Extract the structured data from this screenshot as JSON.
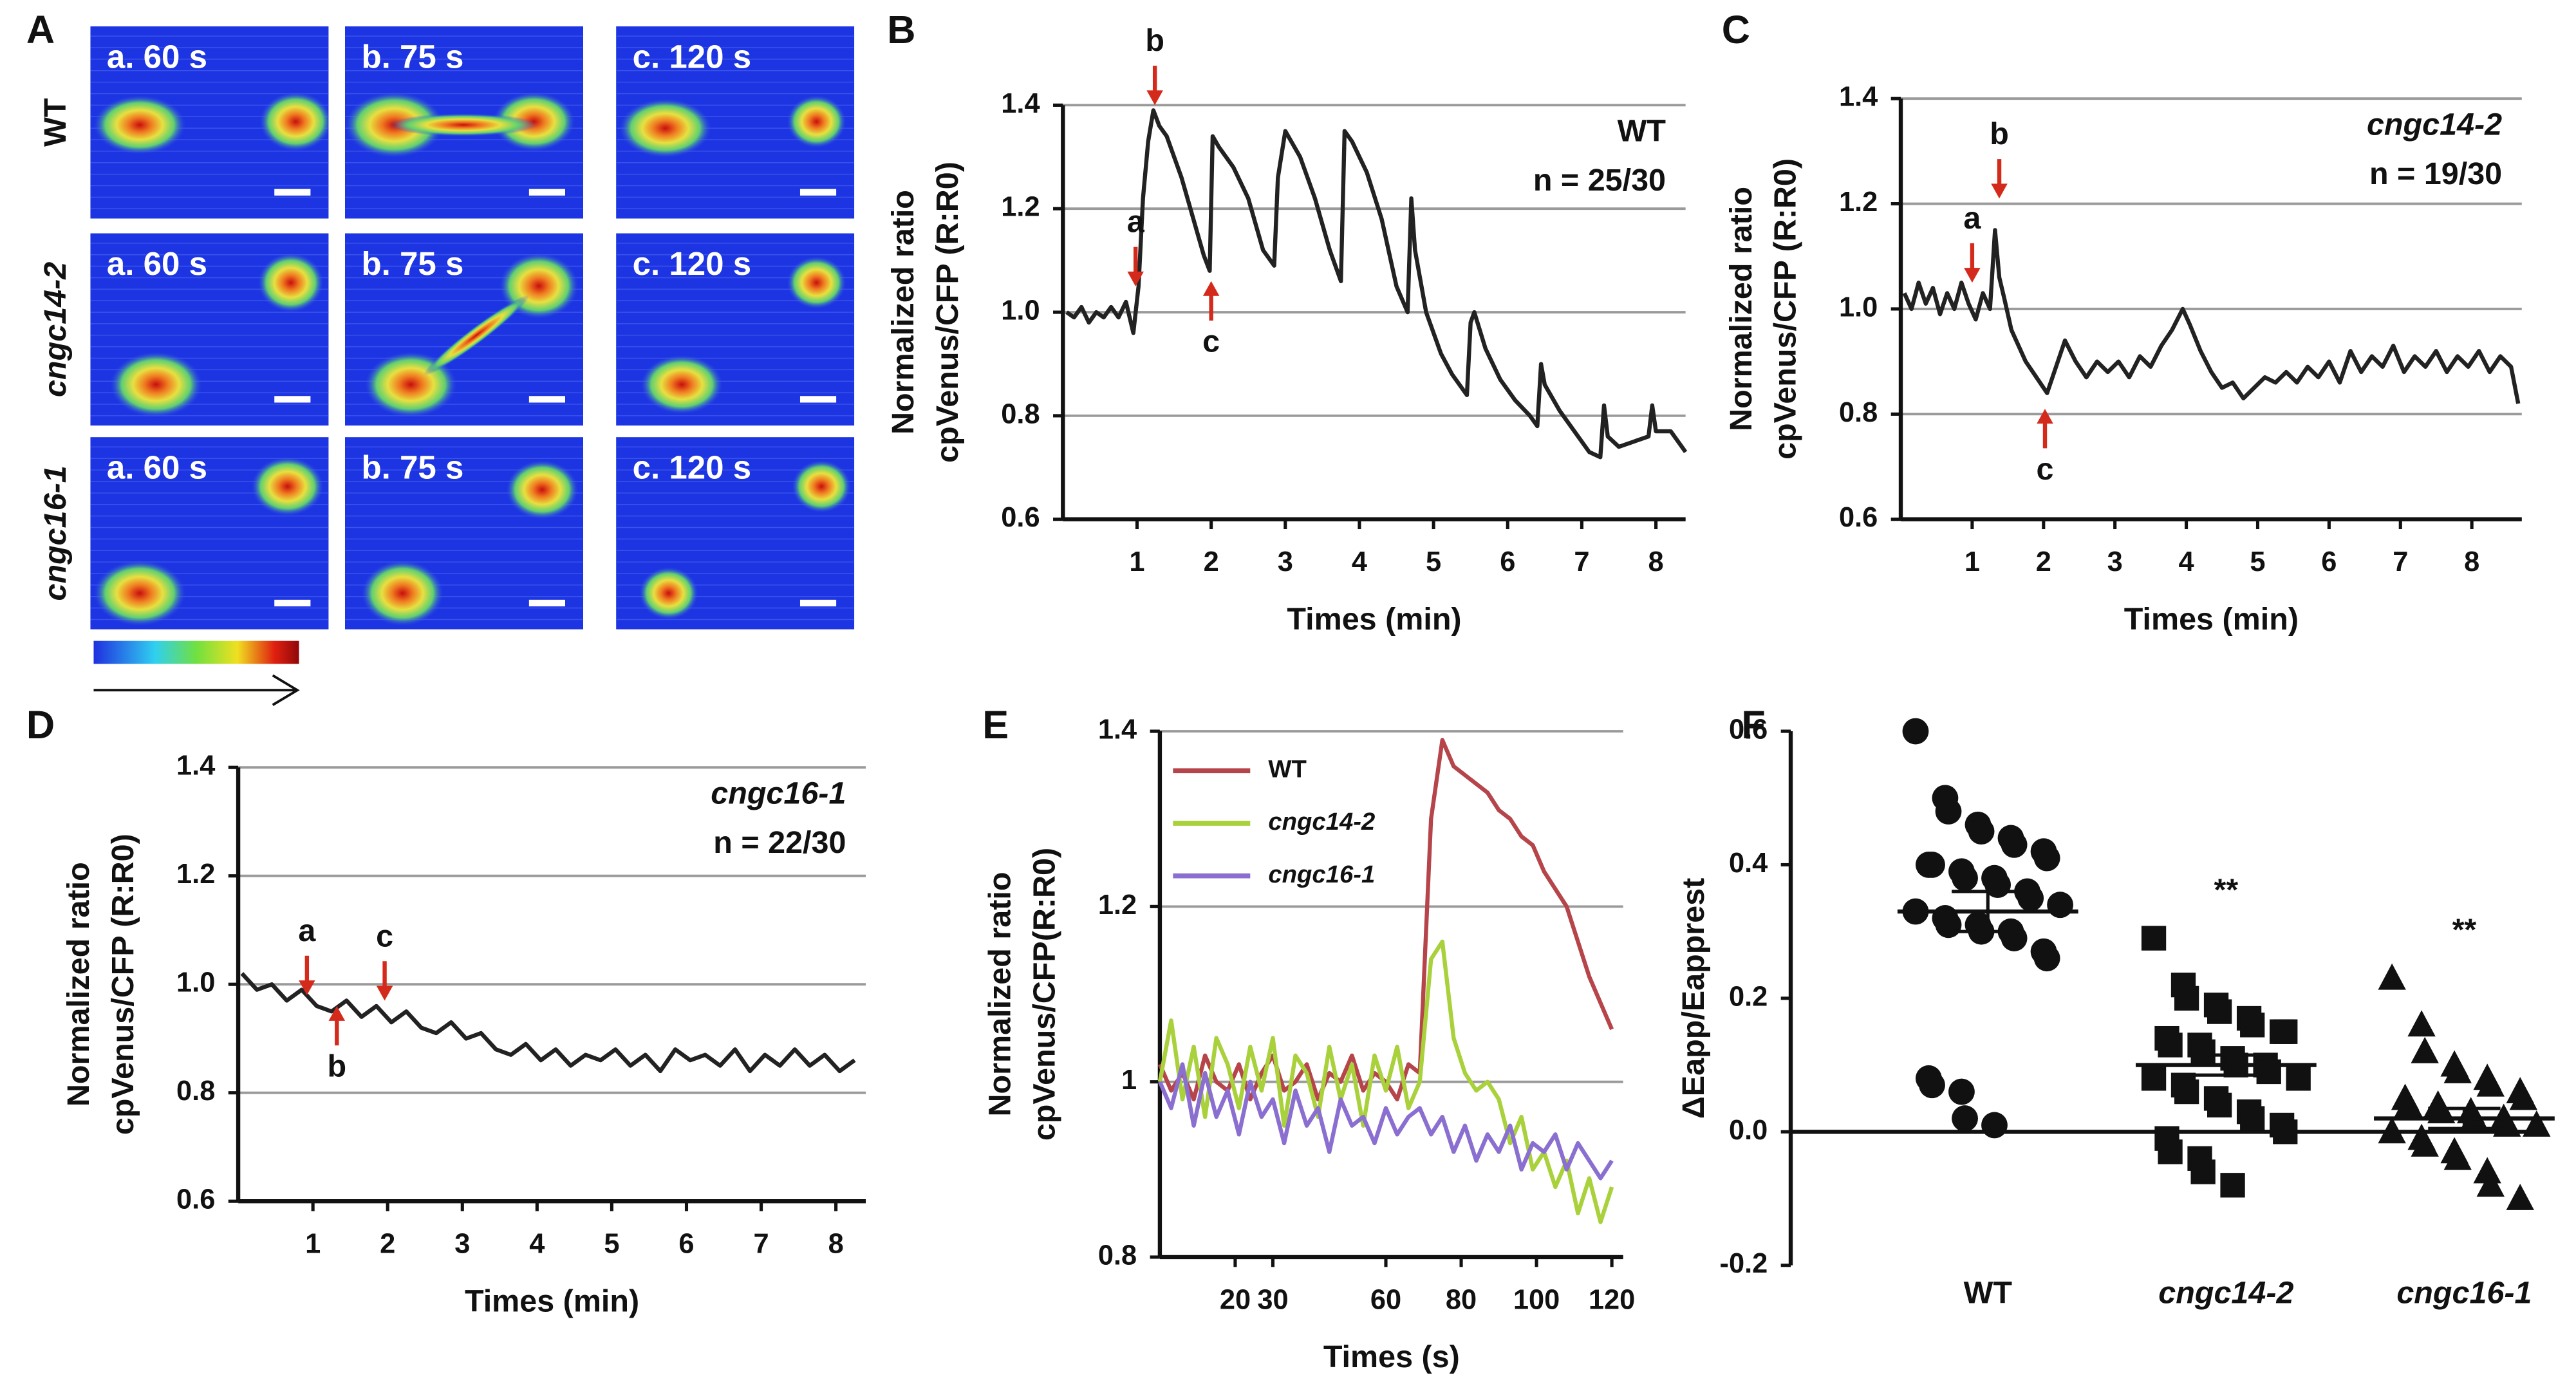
{
  "chart_data": [
    {
      "type": "image-grid",
      "panel": "A",
      "rows": [
        "WT",
        "cngc14-2",
        "cngc16-1"
      ],
      "columns": [
        "a. 60 s",
        "b. 75 s",
        "c. 120 s"
      ]
    },
    {
      "type": "line",
      "panel": "B",
      "genotype": "WT",
      "n_label": "n = 25/30",
      "ylabel": [
        "Normalized ratio",
        "cpVenus/CFP (R:R0)"
      ],
      "xlabel": "Times (min)",
      "color": "#222",
      "grid": true,
      "xlim": [
        0,
        8.4
      ],
      "xticks": [
        1,
        2,
        3,
        4,
        5,
        6,
        7,
        8
      ],
      "ylim": [
        0.6,
        1.4
      ],
      "yticks": [
        1.4,
        1.2,
        {
          "value": 1,
          "label": "1.0"
        },
        0.8,
        0.6
      ],
      "x": [
        0.05,
        0.15,
        0.25,
        0.35,
        0.45,
        0.55,
        0.65,
        0.75,
        0.85,
        0.95,
        1.02,
        1.08,
        1.15,
        1.22,
        1.3,
        1.4,
        1.5,
        1.6,
        1.7,
        1.8,
        1.9,
        1.98,
        2.02,
        2.1,
        2.3,
        2.5,
        2.7,
        2.85,
        2.9,
        3.0,
        3.2,
        3.4,
        3.6,
        3.75,
        3.8,
        3.9,
        4.1,
        4.3,
        4.5,
        4.65,
        4.7,
        4.75,
        4.9,
        5.1,
        5.25,
        5.45,
        5.5,
        5.55,
        5.7,
        5.9,
        6.1,
        6.3,
        6.4,
        6.45,
        6.5,
        6.7,
        6.9,
        7.1,
        7.25,
        7.3,
        7.35,
        7.5,
        7.7,
        7.9,
        7.95,
        8.0,
        8.2,
        8.4
      ],
      "values": [
        1.0,
        0.99,
        1.01,
        0.98,
        1.0,
        0.99,
        1.01,
        0.99,
        1.02,
        0.96,
        1.05,
        1.22,
        1.33,
        1.39,
        1.36,
        1.34,
        1.3,
        1.26,
        1.21,
        1.16,
        1.11,
        1.08,
        1.34,
        1.32,
        1.28,
        1.22,
        1.12,
        1.09,
        1.26,
        1.35,
        1.3,
        1.22,
        1.12,
        1.06,
        1.35,
        1.33,
        1.27,
        1.18,
        1.05,
        1.0,
        1.22,
        1.12,
        1.0,
        0.92,
        0.88,
        0.84,
        0.98,
        1.0,
        0.93,
        0.87,
        0.83,
        0.8,
        0.78,
        0.9,
        0.86,
        0.81,
        0.77,
        0.73,
        0.72,
        0.82,
        0.76,
        0.74,
        0.75,
        0.76,
        0.82,
        0.77,
        0.77,
        0.73
      ],
      "annotations": [
        {
          "text": "a",
          "x": 0.98,
          "y": 1.05,
          "side": "above"
        },
        {
          "text": "b",
          "x": 1.24,
          "y": 1.4,
          "side": "above"
        },
        {
          "text": "c",
          "x": 2.0,
          "y": 1.06,
          "side": "below"
        }
      ]
    },
    {
      "type": "line",
      "panel": "C",
      "genotype": "cngc14-2",
      "n_label": "n = 19/30",
      "ylabel": [
        "Normalized ratio",
        "cpVenus/CFP (R:R0)"
      ],
      "xlabel": "Times (min)",
      "color": "#222",
      "grid": true,
      "xlim": [
        0,
        8.7
      ],
      "xticks": [
        1,
        2,
        3,
        4,
        5,
        6,
        7,
        8
      ],
      "ylim": [
        0.6,
        1.4
      ],
      "yticks": [
        1.4,
        1.2,
        {
          "value": 1,
          "label": "1.0"
        },
        0.8,
        0.6
      ],
      "x": [
        0.05,
        0.15,
        0.25,
        0.35,
        0.45,
        0.55,
        0.65,
        0.75,
        0.85,
        0.95,
        1.05,
        1.15,
        1.25,
        1.32,
        1.38,
        1.45,
        1.55,
        1.65,
        1.75,
        1.85,
        1.95,
        2.05,
        2.15,
        2.3,
        2.45,
        2.6,
        2.75,
        2.9,
        3.05,
        3.2,
        3.35,
        3.5,
        3.65,
        3.8,
        3.95,
        4.05,
        4.2,
        4.35,
        4.5,
        4.65,
        4.8,
        4.95,
        5.1,
        5.25,
        5.4,
        5.55,
        5.7,
        5.85,
        6.0,
        6.15,
        6.3,
        6.45,
        6.6,
        6.75,
        6.9,
        7.05,
        7.2,
        7.35,
        7.5,
        7.65,
        7.8,
        7.95,
        8.1,
        8.25,
        8.4,
        8.55,
        8.65
      ],
      "values": [
        1.03,
        1.0,
        1.05,
        1.01,
        1.04,
        0.99,
        1.03,
        1.0,
        1.05,
        1.01,
        0.98,
        1.03,
        1.0,
        1.15,
        1.06,
        1.02,
        0.96,
        0.93,
        0.9,
        0.88,
        0.86,
        0.84,
        0.88,
        0.94,
        0.9,
        0.87,
        0.9,
        0.88,
        0.9,
        0.87,
        0.91,
        0.89,
        0.93,
        0.96,
        1.0,
        0.97,
        0.92,
        0.88,
        0.85,
        0.86,
        0.83,
        0.85,
        0.87,
        0.86,
        0.88,
        0.86,
        0.89,
        0.87,
        0.9,
        0.86,
        0.92,
        0.88,
        0.91,
        0.89,
        0.93,
        0.88,
        0.91,
        0.89,
        0.92,
        0.88,
        0.91,
        0.89,
        0.92,
        0.88,
        0.91,
        0.89,
        0.82
      ],
      "annotations": [
        {
          "text": "a",
          "x": 1.0,
          "y": 1.05,
          "side": "above"
        },
        {
          "text": "b",
          "x": 1.38,
          "y": 1.21,
          "side": "above"
        },
        {
          "text": "c",
          "x": 2.02,
          "y": 0.81,
          "side": "below"
        }
      ]
    },
    {
      "type": "line",
      "panel": "D",
      "genotype": "cngc16-1",
      "n_label": "n = 22/30",
      "ylabel": [
        "Normalized ratio",
        "cpVenus/CFP (R:R0)"
      ],
      "xlabel": "Times (min)",
      "color": "#222",
      "grid": true,
      "xlim": [
        0,
        8.4
      ],
      "xticks": [
        1,
        2,
        3,
        4,
        5,
        6,
        7,
        8
      ],
      "ylim": [
        0.6,
        1.4
      ],
      "yticks": [
        1.4,
        1.2,
        {
          "value": 1,
          "label": "1.0"
        },
        0.8,
        0.6
      ],
      "x": [
        0.05,
        0.25,
        0.45,
        0.65,
        0.85,
        1.05,
        1.25,
        1.45,
        1.65,
        1.85,
        2.05,
        2.25,
        2.45,
        2.65,
        2.85,
        3.05,
        3.25,
        3.45,
        3.65,
        3.85,
        4.05,
        4.25,
        4.45,
        4.65,
        4.85,
        5.05,
        5.25,
        5.45,
        5.65,
        5.85,
        6.05,
        6.25,
        6.45,
        6.65,
        6.85,
        7.05,
        7.25,
        7.45,
        7.65,
        7.85,
        8.05,
        8.25
      ],
      "values": [
        1.02,
        0.99,
        1.0,
        0.97,
        0.99,
        0.96,
        0.95,
        0.97,
        0.94,
        0.96,
        0.93,
        0.95,
        0.92,
        0.91,
        0.93,
        0.9,
        0.91,
        0.88,
        0.87,
        0.89,
        0.86,
        0.88,
        0.85,
        0.87,
        0.86,
        0.88,
        0.85,
        0.87,
        0.84,
        0.88,
        0.86,
        0.87,
        0.85,
        0.88,
        0.84,
        0.87,
        0.85,
        0.88,
        0.85,
        0.87,
        0.84,
        0.86
      ],
      "annotations": [
        {
          "text": "a",
          "x": 0.92,
          "y": 0.98,
          "side": "above"
        },
        {
          "text": "b",
          "x": 1.32,
          "y": 0.96,
          "side": "below"
        },
        {
          "text": "c",
          "x": 1.96,
          "y": 0.97,
          "side": "above"
        }
      ]
    },
    {
      "type": "line",
      "panel": "E",
      "legend": true,
      "ylabel": [
        "Normalized ratio",
        "cpVenus/CFP(R:R0)"
      ],
      "xlabel": "Times (s)",
      "grid": true,
      "xlim": [
        0,
        123
      ],
      "xticks": [
        20,
        30,
        60,
        80,
        100,
        120
      ],
      "ylim": [
        0.8,
        1.4
      ],
      "yticks": [
        1.4,
        1.2,
        1,
        0.8
      ],
      "x": [
        0,
        3,
        6,
        9,
        12,
        15,
        18,
        21,
        24,
        27,
        30,
        33,
        36,
        39,
        42,
        45,
        48,
        51,
        54,
        57,
        60,
        63,
        66,
        69,
        72,
        75,
        78,
        81,
        84,
        87,
        90,
        93,
        96,
        99,
        102,
        105,
        108,
        111,
        114,
        117,
        120
      ],
      "series": [
        {
          "name": "WT",
          "color": "#b5454a",
          "values": [
            1.02,
            0.99,
            1.01,
            0.98,
            1.03,
            1.0,
            0.99,
            1.02,
            0.98,
            1.01,
            1.03,
            0.99,
            1.0,
            1.02,
            0.98,
            1.01,
            1.0,
            1.03,
            0.99,
            1.01,
            1.0,
            0.98,
            1.02,
            1.01,
            1.3,
            1.39,
            1.36,
            1.35,
            1.34,
            1.33,
            1.31,
            1.3,
            1.28,
            1.27,
            1.24,
            1.22,
            1.2,
            1.16,
            1.12,
            1.09,
            1.06
          ]
        },
        {
          "name": "cngc14-2",
          "color": "#a9d13b",
          "values": [
            1.0,
            1.07,
            0.98,
            1.04,
            0.96,
            1.05,
            1.02,
            0.97,
            1.04,
            0.99,
            1.05,
            0.95,
            1.03,
            1.01,
            0.96,
            1.04,
            0.98,
            1.02,
            0.95,
            1.03,
            0.99,
            1.04,
            0.97,
            1.0,
            1.14,
            1.16,
            1.05,
            1.01,
            0.99,
            1.0,
            0.98,
            0.93,
            0.96,
            0.9,
            0.92,
            0.88,
            0.91,
            0.85,
            0.89,
            0.84,
            0.88
          ]
        },
        {
          "name": "cngc16-1",
          "color": "#8a6fd1",
          "values": [
            1.0,
            0.97,
            1.02,
            0.95,
            1.01,
            0.96,
            0.99,
            0.94,
            1.0,
            0.96,
            0.98,
            0.93,
            0.99,
            0.95,
            0.97,
            0.92,
            0.98,
            0.95,
            0.96,
            0.93,
            0.97,
            0.94,
            0.96,
            0.97,
            0.94,
            0.96,
            0.92,
            0.95,
            0.91,
            0.94,
            0.92,
            0.95,
            0.9,
            0.93,
            0.92,
            0.94,
            0.9,
            0.93,
            0.91,
            0.89,
            0.91
          ]
        }
      ]
    },
    {
      "type": "dot-plot",
      "panel": "F",
      "ylabel": "ΔEapp/Eapprest",
      "color": "#111",
      "categories": [
        "WT",
        "cngc14-2",
        "cngc16-1"
      ],
      "markers": [
        "circle",
        "square",
        "triangle"
      ],
      "ylim": [
        -0.2,
        0.6
      ],
      "yticks": [
        0.6,
        0.4,
        0.2,
        {
          "value": 0,
          "label": "0.0"
        },
        -0.2
      ],
      "baseline": 0,
      "values": [
        [
          0.6,
          0.5,
          0.48,
          0.46,
          0.45,
          0.44,
          0.43,
          0.42,
          0.41,
          0.4,
          0.4,
          0.39,
          0.38,
          0.38,
          0.37,
          0.36,
          0.35,
          0.34,
          0.33,
          0.32,
          0.31,
          0.31,
          0.3,
          0.3,
          0.29,
          0.27,
          0.26,
          0.08,
          0.07,
          0.06,
          0.02,
          0.01
        ],
        [
          0.29,
          0.22,
          0.2,
          0.19,
          0.18,
          0.17,
          0.16,
          0.15,
          0.15,
          0.14,
          0.13,
          0.13,
          0.12,
          0.11,
          0.1,
          0.1,
          0.09,
          0.08,
          0.08,
          0.07,
          0.06,
          0.05,
          0.04,
          0.03,
          0.02,
          0.01,
          0.0,
          -0.01,
          -0.03,
          -0.04,
          -0.06,
          -0.08
        ],
        [
          0.23,
          0.16,
          0.12,
          0.1,
          0.09,
          0.08,
          0.07,
          0.06,
          0.05,
          0.05,
          0.04,
          0.04,
          0.03,
          0.03,
          0.02,
          0.02,
          0.01,
          0.01,
          0.0,
          -0.01,
          -0.02,
          -0.03,
          -0.04,
          -0.06,
          -0.08,
          -0.1
        ]
      ],
      "means": [
        0.33,
        0.1,
        0.02
      ],
      "sems": [
        0.03,
        0.015,
        0.015
      ],
      "significance": [
        null,
        "**",
        "**"
      ]
    }
  ]
}
